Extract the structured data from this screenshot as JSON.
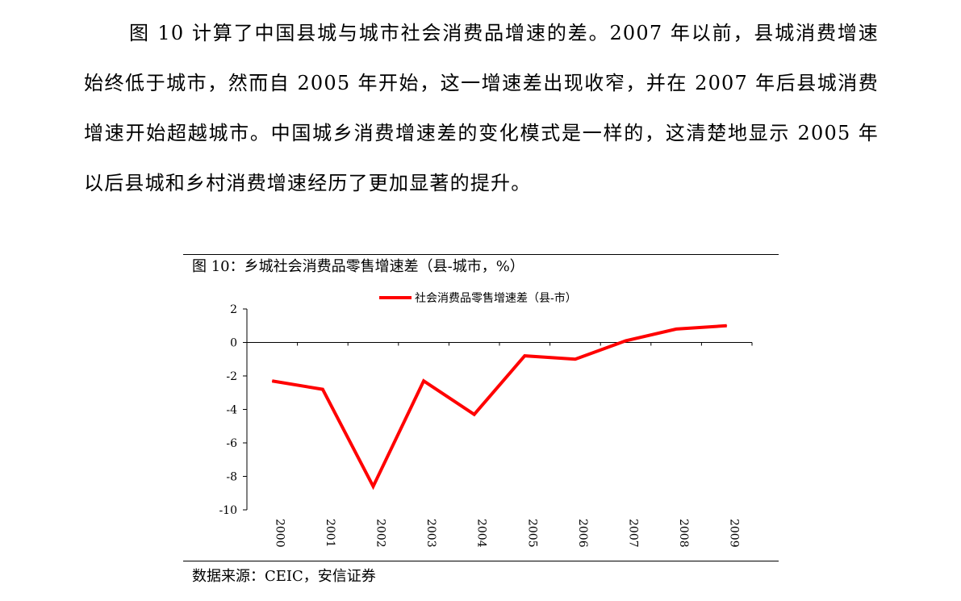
{
  "paragraph": "图 10 计算了中国县城与城市社会消费品增速的差。2007 年以前，县城消费增速始终低于城市，然而自 2005 年开始，这一增速差出现收窄，并在 2007 年后县城消费增速开始超越城市。中国城乡消费增速差的变化模式是一样的，这清楚地显示 2005 年以后县城和乡村消费增速经历了更加显著的提升。",
  "figure": {
    "title": "图 10：乡城社会消费品零售增速差（县-城市，%）",
    "source": "数据来源：CEIC，安信证券"
  },
  "chart_data": {
    "type": "line",
    "title": "图 10：乡城社会消费品零售增速差（县-城市，%）",
    "categories": [
      "2000",
      "2001",
      "2002",
      "2003",
      "2004",
      "2005",
      "2006",
      "2007",
      "2008",
      "2009"
    ],
    "series": [
      {
        "name": "社会消费品零售增速差（县-市）",
        "color": "#ff0000",
        "values": [
          -2.3,
          -2.8,
          -8.6,
          -2.3,
          -4.3,
          -0.8,
          -1.0,
          0.1,
          0.8,
          1.0
        ]
      }
    ],
    "y_ticks": [
      "2",
      "0",
      "-2",
      "-4",
      "-6",
      "-8",
      "-10"
    ],
    "ylim": [
      -10,
      2
    ],
    "xlabel": "",
    "ylabel": "",
    "grid": false,
    "legend": "top-center",
    "x_tick_orientation": "rotated-vertical"
  }
}
